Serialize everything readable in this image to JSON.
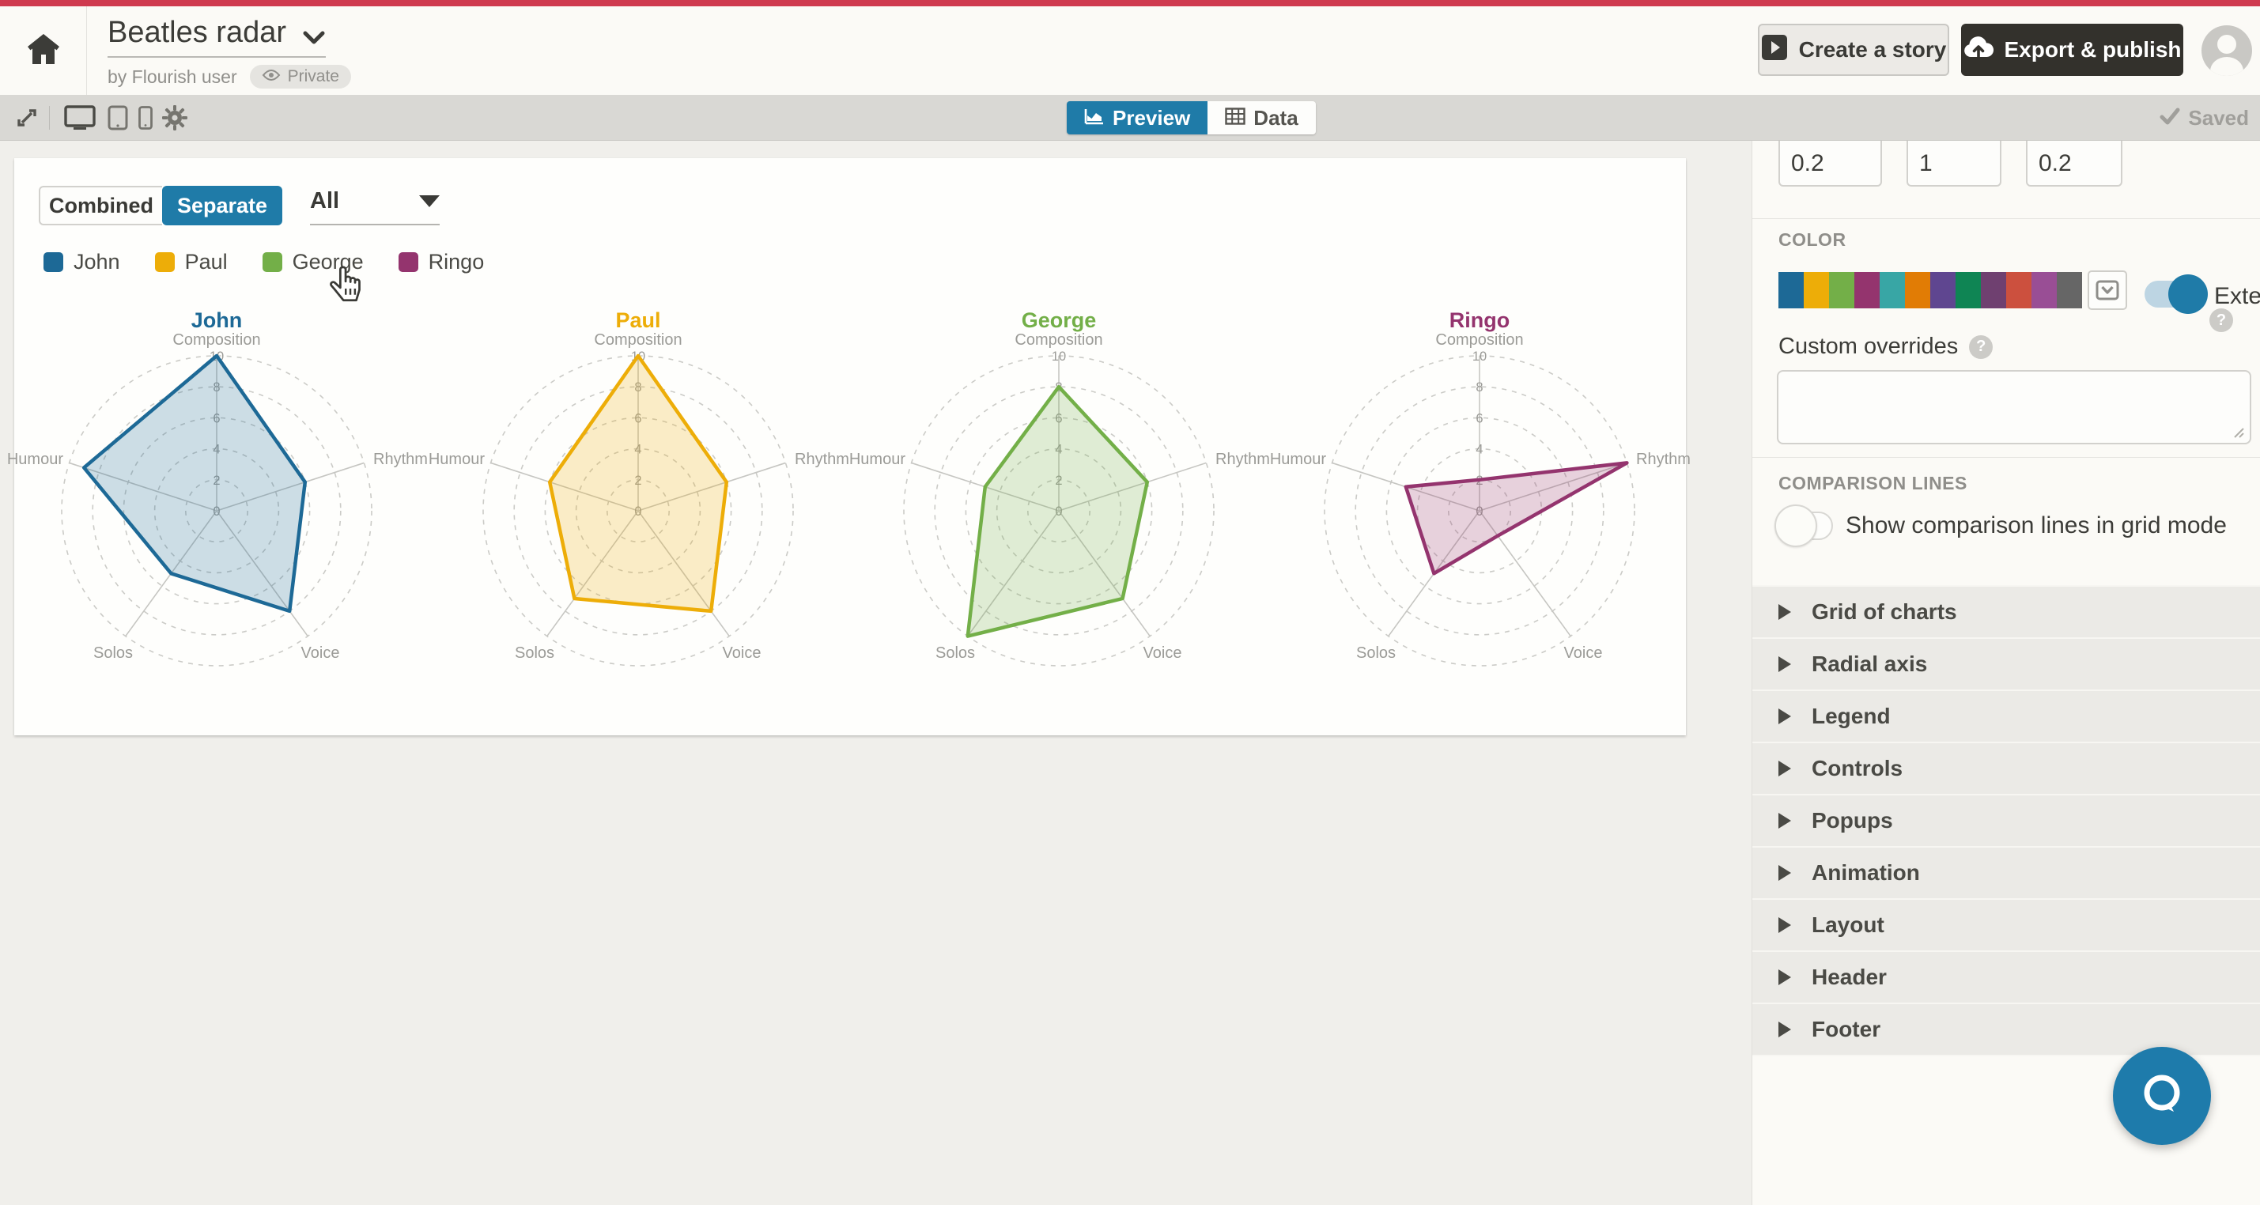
{
  "header": {
    "title": "Beatles radar",
    "byline": "by Flourish user",
    "privacy_badge": "Private",
    "create_story_label": "Create a story",
    "export_publish_label": "Export & publish"
  },
  "toolbar": {
    "preview_tab": "Preview",
    "data_tab": "Data",
    "saved_label": "Saved"
  },
  "preview_controls": {
    "mode_combined": "Combined",
    "mode_separate": "Separate",
    "active_mode": "Separate",
    "filter_value": "All"
  },
  "chart_data": {
    "type": "radar",
    "layout": "separate-small-multiples",
    "axes": [
      "Composition",
      "Rhythm",
      "Voice",
      "Solos",
      "Humour"
    ],
    "scale": {
      "min": 0,
      "max": 10,
      "ticks": [
        0,
        2,
        4,
        6,
        8,
        10
      ]
    },
    "grid": "dashed-circles",
    "series": [
      {
        "name": "John",
        "color": "#1D6996",
        "values": [
          10,
          6,
          8,
          5,
          9
        ]
      },
      {
        "name": "Paul",
        "color": "#EDAD08",
        "values": [
          10,
          6,
          8,
          7,
          6
        ]
      },
      {
        "name": "George",
        "color": "#73AF48",
        "values": [
          8,
          6,
          7,
          10,
          5
        ]
      },
      {
        "name": "Ringo",
        "color": "#94346E",
        "values": [
          2,
          10,
          2,
          5,
          5
        ]
      }
    ]
  },
  "settings": {
    "number_inputs": [
      "0.2",
      "1",
      "0.2"
    ],
    "color_section_label": "COLOR",
    "palette": [
      "#1D6996",
      "#EDAD08",
      "#73AF48",
      "#94346E",
      "#38A6A5",
      "#E17C05",
      "#5F4690",
      "#0F8554",
      "#6F4070",
      "#CC503E",
      "#994E95",
      "#666666"
    ],
    "extend_label": "Extend",
    "extend_on": true,
    "custom_overrides_label": "Custom overrides",
    "custom_overrides_value": "",
    "comparison_section_label": "COMPARISON LINES",
    "comparison_toggle_label": "Show comparison lines in grid mode",
    "comparison_toggle_on": false,
    "accordions": [
      "Grid of charts",
      "Radial axis",
      "Legend",
      "Controls",
      "Popups",
      "Animation",
      "Layout",
      "Header",
      "Footer"
    ]
  },
  "ui_colors": {
    "accent_blue": "#1F7BA8",
    "topbar_red": "#CF3A4F",
    "dark_button": "#33312C"
  }
}
